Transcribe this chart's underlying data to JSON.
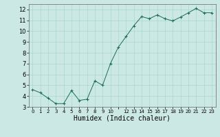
{
  "x": [
    0,
    1,
    2,
    3,
    4,
    5,
    6,
    7,
    8,
    9,
    10,
    11,
    12,
    13,
    14,
    15,
    16,
    17,
    18,
    19,
    20,
    21,
    22,
    23
  ],
  "y": [
    4.6,
    4.3,
    3.8,
    3.3,
    3.3,
    4.5,
    3.6,
    3.7,
    5.4,
    5.0,
    7.0,
    8.5,
    9.5,
    10.5,
    11.35,
    11.15,
    11.5,
    11.15,
    10.95,
    11.3,
    11.7,
    12.1,
    11.7,
    11.7
  ],
  "xlabel": "Humidex (Indice chaleur)",
  "ylim": [
    3,
    12.5
  ],
  "xlim": [
    -0.5,
    23.5
  ],
  "yticks": [
    3,
    4,
    5,
    6,
    7,
    8,
    9,
    10,
    11,
    12
  ],
  "xticks": [
    0,
    1,
    2,
    3,
    4,
    5,
    6,
    7,
    8,
    9,
    10,
    12,
    13,
    14,
    15,
    16,
    17,
    18,
    19,
    20,
    21,
    22,
    23
  ],
  "xtick_labels": [
    "0",
    "1",
    "2",
    "3",
    "4",
    "5",
    "6",
    "7",
    "8",
    "9",
    "10",
    "12",
    "13",
    "14",
    "15",
    "16",
    "17",
    "18",
    "19",
    "20",
    "21",
    "22",
    "23"
  ],
  "line_color": "#1a6b5a",
  "marker_color": "#1a6b5a",
  "bg_color": "#cce8e4",
  "grid_color": "#a8d8d4",
  "figure_bg": "#cce8e4",
  "xlabel_fontsize": 7,
  "ytick_fontsize": 6,
  "xtick_fontsize": 5
}
